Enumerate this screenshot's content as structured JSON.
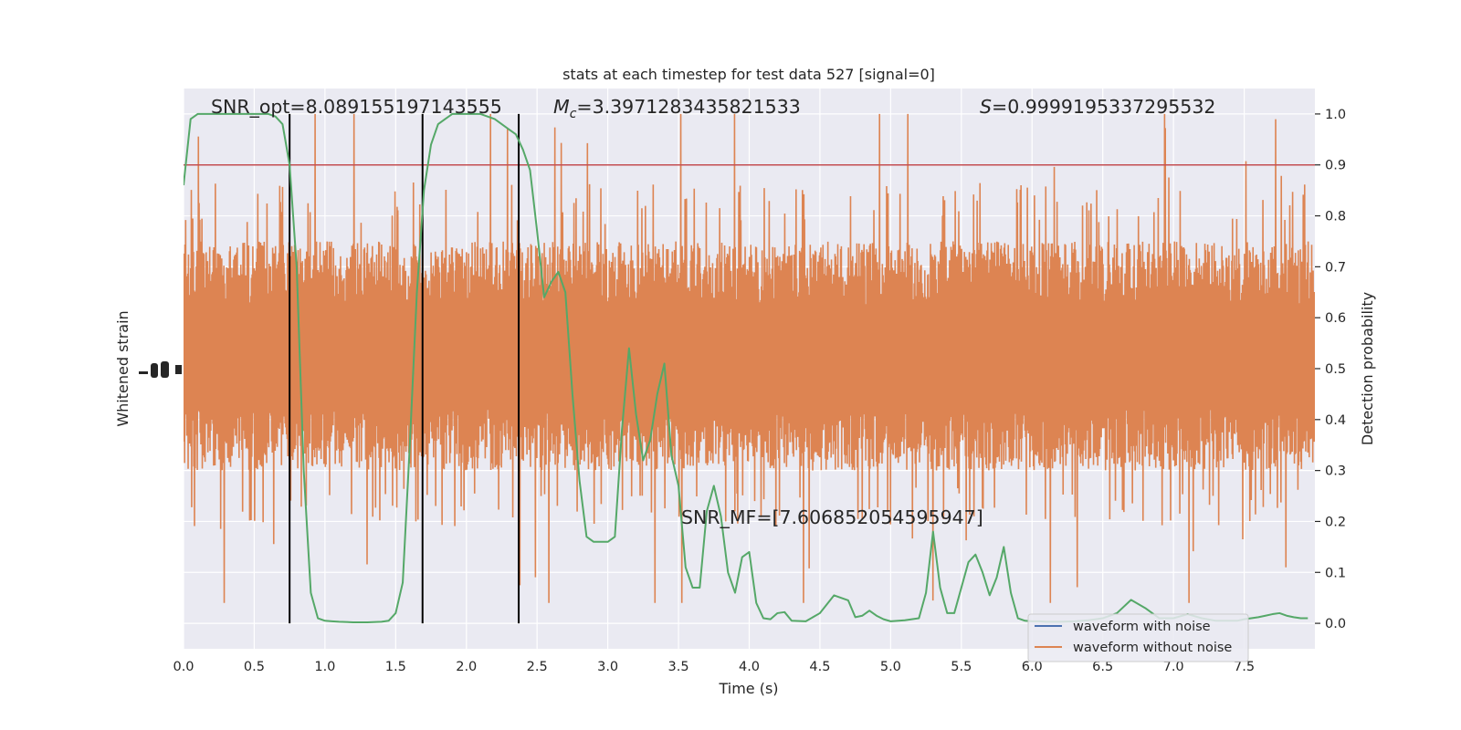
{
  "chart_data": {
    "type": "line",
    "title": "stats at each timestep for test data 527 [signal=0]",
    "xlabel": "Time (s)",
    "ylabel_left": "Whitened strain",
    "ylabel_right": "Detection probability",
    "xlim": [
      0.0,
      8.0
    ],
    "ylim_right": [
      -0.05,
      1.05
    ],
    "x_ticks": [
      "0.0",
      "0.5",
      "1.0",
      "1.5",
      "2.0",
      "2.5",
      "3.0",
      "3.5",
      "4.0",
      "4.5",
      "5.0",
      "5.5",
      "6.0",
      "6.5",
      "7.0",
      "7.5"
    ],
    "right_ticks": [
      "0.0",
      "0.1",
      "0.2",
      "0.3",
      "0.4",
      "0.5",
      "0.6",
      "0.7",
      "0.8",
      "0.9",
      "1.0"
    ],
    "threshold": 0.9,
    "vlines": [
      0.75,
      1.69,
      2.37
    ],
    "annotations": {
      "snr_opt": "SNR_opt=8.089155197143555",
      "mc_symbol": "M",
      "mc_subscript": "c",
      "mc_value": "=3.3971283435821533",
      "s_symbol": "S",
      "s_value": "=0.9999195337295532",
      "snr_mf": "SNR_MF=[7.606852054595947]"
    },
    "legend": [
      {
        "label": "waveform with noise",
        "color": "#4c72b0"
      },
      {
        "label": "waveform without noise",
        "color": "#dd8452"
      }
    ],
    "colors": {
      "background": "#eaeaf2",
      "grid": "#ffffff",
      "strain": "#dd8452",
      "probability": "#55a868",
      "threshold": "#c44e52",
      "vline": "#000000"
    },
    "probability_series": {
      "name": "Detection probability",
      "x": [
        0.0,
        0.05,
        0.1,
        0.2,
        0.3,
        0.4,
        0.5,
        0.6,
        0.65,
        0.7,
        0.75,
        0.8,
        0.85,
        0.9,
        0.95,
        1.0,
        1.05,
        1.1,
        1.2,
        1.3,
        1.4,
        1.45,
        1.5,
        1.55,
        1.6,
        1.65,
        1.7,
        1.75,
        1.8,
        1.85,
        1.9,
        2.0,
        2.1,
        2.2,
        2.3,
        2.35,
        2.4,
        2.45,
        2.5,
        2.55,
        2.6,
        2.65,
        2.7,
        2.75,
        2.8,
        2.85,
        2.9,
        3.0,
        3.05,
        3.1,
        3.15,
        3.2,
        3.25,
        3.3,
        3.35,
        3.4,
        3.45,
        3.5,
        3.55,
        3.6,
        3.65,
        3.7,
        3.75,
        3.8,
        3.85,
        3.9,
        3.95,
        4.0,
        4.05,
        4.1,
        4.15,
        4.2,
        4.25,
        4.3,
        4.4,
        4.5,
        4.6,
        4.7,
        4.75,
        4.8,
        4.85,
        4.9,
        4.95,
        5.0,
        5.1,
        5.2,
        5.25,
        5.3,
        5.35,
        5.4,
        5.45,
        5.5,
        5.55,
        5.6,
        5.65,
        5.7,
        5.75,
        5.8,
        5.85,
        5.9,
        5.95,
        6.0,
        6.05,
        6.1,
        6.15,
        6.2,
        6.3,
        6.4,
        6.5,
        6.6,
        6.7,
        6.8,
        6.9,
        7.0,
        7.1,
        7.2,
        7.3,
        7.4,
        7.45,
        7.5,
        7.55,
        7.6,
        7.65,
        7.7,
        7.75,
        7.8,
        7.85,
        7.9,
        7.95
      ],
      "values": [
        0.86,
        0.99,
        1.0,
        1.0,
        1.0,
        1.0,
        1.0,
        1.0,
        0.995,
        0.98,
        0.9,
        0.7,
        0.3,
        0.06,
        0.01,
        0.005,
        0.004,
        0.003,
        0.002,
        0.002,
        0.003,
        0.005,
        0.02,
        0.08,
        0.35,
        0.65,
        0.85,
        0.94,
        0.98,
        0.99,
        1.0,
        1.0,
        1.0,
        0.99,
        0.97,
        0.96,
        0.93,
        0.89,
        0.77,
        0.64,
        0.67,
        0.69,
        0.65,
        0.45,
        0.28,
        0.17,
        0.16,
        0.16,
        0.17,
        0.38,
        0.54,
        0.41,
        0.32,
        0.36,
        0.45,
        0.51,
        0.33,
        0.27,
        0.11,
        0.07,
        0.07,
        0.22,
        0.27,
        0.21,
        0.1,
        0.06,
        0.13,
        0.14,
        0.04,
        0.01,
        0.008,
        0.02,
        0.022,
        0.005,
        0.004,
        0.02,
        0.055,
        0.045,
        0.012,
        0.015,
        0.025,
        0.015,
        0.008,
        0.004,
        0.006,
        0.01,
        0.06,
        0.18,
        0.07,
        0.02,
        0.02,
        0.07,
        0.12,
        0.135,
        0.1,
        0.055,
        0.09,
        0.15,
        0.06,
        0.01,
        0.005,
        0.004,
        0.004,
        0.003,
        0.003,
        0.003,
        0.004,
        0.006,
        0.01,
        0.02,
        0.046,
        0.03,
        0.01,
        0.01,
        0.018,
        0.01,
        0.005,
        0.005,
        0.005,
        0.008,
        0.01,
        0.012,
        0.015,
        0.018,
        0.02,
        0.015,
        0.012,
        0.01,
        0.01
      ]
    },
    "strain_envelope": {
      "name": "waveform without noise",
      "note": "dense oscillation between these probability-axis levels",
      "typical_low": 0.3,
      "typical_high": 0.75,
      "extreme_low": 0.04,
      "extreme_high": 1.0
    }
  }
}
